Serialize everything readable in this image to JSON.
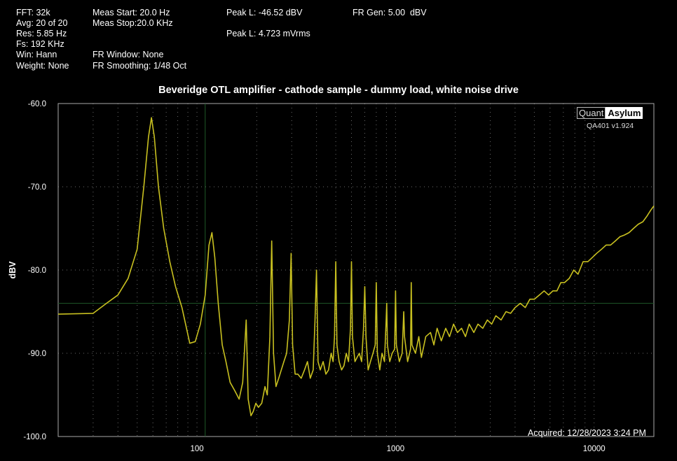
{
  "info": {
    "fft": "FFT: 32k",
    "avg": "Avg: 20 of 20",
    "res": "Res: 5.85 Hz",
    "fs": "Fs: 192 KHz",
    "win": "Win: Hann",
    "weight": "Weight: None",
    "meas_start": "Meas Start: 20.0 Hz",
    "meas_stop": "Meas Stop:20.0 KHz",
    "fr_window": "FR Window: None",
    "fr_smoothing": "FR Smoothing: 1/48 Oct",
    "peak_dbv": "Peak L: -46.52 dBV",
    "peak_vrms": "Peak L: 4.723 mVrms",
    "fr_gen": "FR Gen: 5.00  dBV"
  },
  "logo": {
    "quant": "Quant",
    "asylum": "Asylum",
    "version": "QA401 v1.924"
  },
  "acquired": "Acquired: 12/28/2023  3:24 PM",
  "chart_data": {
    "type": "line",
    "title": "Beveridge OTL amplifier - cathode sample - dummy load, white noise drive",
    "xlabel": "",
    "ylabel": "dBV",
    "x_scale": "log",
    "xlim": [
      20,
      20000
    ],
    "ylim": [
      -100,
      -60
    ],
    "x_ticks": [
      {
        "value": 100,
        "label": "100"
      },
      {
        "value": 1000,
        "label": "1000"
      },
      {
        "value": 10000,
        "label": "10000"
      }
    ],
    "y_ticks": [
      {
        "value": -60,
        "label": "-60.0"
      },
      {
        "value": -70,
        "label": "-70.0"
      },
      {
        "value": -80,
        "label": "-80.0"
      },
      {
        "value": -90,
        "label": "-90.0"
      },
      {
        "value": -100,
        "label": "-100.0"
      }
    ],
    "grid": true,
    "cursor": {
      "x": 110,
      "y": -84
    },
    "color": "#c8c020",
    "series": [
      {
        "points": [
          [
            20,
            -85.3
          ],
          [
            30,
            -85.2
          ],
          [
            35,
            -84
          ],
          [
            40,
            -83
          ],
          [
            45,
            -81
          ],
          [
            50,
            -77.5
          ],
          [
            54,
            -70
          ],
          [
            57,
            -64
          ],
          [
            59,
            -61.7
          ],
          [
            61,
            -64
          ],
          [
            64,
            -70
          ],
          [
            68,
            -75
          ],
          [
            73,
            -79
          ],
          [
            78,
            -82
          ],
          [
            84,
            -84.5
          ],
          [
            92,
            -88.8
          ],
          [
            98,
            -88.6
          ],
          [
            104,
            -86.5
          ],
          [
            110,
            -83
          ],
          [
            115,
            -77
          ],
          [
            119,
            -75.5
          ],
          [
            123,
            -78.5
          ],
          [
            128,
            -84
          ],
          [
            134,
            -89
          ],
          [
            140,
            -91
          ],
          [
            147,
            -93.5
          ],
          [
            155,
            -94.5
          ],
          [
            163,
            -95.5
          ],
          [
            170,
            -93.5
          ],
          [
            177,
            -86
          ],
          [
            181,
            -95.5
          ],
          [
            187,
            -97.5
          ],
          [
            192,
            -97
          ],
          [
            198,
            -96
          ],
          [
            204,
            -96.5
          ],
          [
            212,
            -96
          ],
          [
            220,
            -94
          ],
          [
            226,
            -95
          ],
          [
            233,
            -88
          ],
          [
            238,
            -76.5
          ],
          [
            243,
            -90
          ],
          [
            250,
            -94
          ],
          [
            258,
            -93
          ],
          [
            266,
            -92
          ],
          [
            274,
            -91
          ],
          [
            283,
            -90
          ],
          [
            292,
            -86
          ],
          [
            298,
            -78
          ],
          [
            303,
            -89
          ],
          [
            312,
            -92.5
          ],
          [
            322,
            -92.5
          ],
          [
            335,
            -93
          ],
          [
            348,
            -92
          ],
          [
            360,
            -91
          ],
          [
            372,
            -93
          ],
          [
            385,
            -92
          ],
          [
            393,
            -86
          ],
          [
            400,
            -80
          ],
          [
            407,
            -91
          ],
          [
            418,
            -92
          ],
          [
            432,
            -91
          ],
          [
            446,
            -92.5
          ],
          [
            460,
            -92
          ],
          [
            474,
            -90
          ],
          [
            485,
            -91
          ],
          [
            493,
            -88
          ],
          [
            500,
            -79
          ],
          [
            507,
            -89
          ],
          [
            520,
            -91
          ],
          [
            535,
            -92
          ],
          [
            550,
            -91.5
          ],
          [
            565,
            -90
          ],
          [
            580,
            -91
          ],
          [
            593,
            -87
          ],
          [
            600,
            -79
          ],
          [
            607,
            -88
          ],
          [
            625,
            -91
          ],
          [
            640,
            -90.5
          ],
          [
            657,
            -90
          ],
          [
            675,
            -91
          ],
          [
            690,
            -87
          ],
          [
            700,
            -82
          ],
          [
            710,
            -88
          ],
          [
            728,
            -92
          ],
          [
            748,
            -91
          ],
          [
            770,
            -90
          ],
          [
            790,
            -89
          ],
          [
            800,
            -81.5
          ],
          [
            810,
            -90
          ],
          [
            833,
            -92
          ],
          [
            855,
            -90
          ],
          [
            880,
            -91
          ],
          [
            897,
            -86
          ],
          [
            903,
            -84
          ],
          [
            910,
            -89
          ],
          [
            935,
            -91
          ],
          [
            962,
            -90
          ],
          [
            990,
            -89.5
          ],
          [
            1000,
            -82.5
          ],
          [
            1010,
            -89
          ],
          [
            1045,
            -91
          ],
          [
            1080,
            -90
          ],
          [
            1100,
            -85
          ],
          [
            1110,
            -88
          ],
          [
            1150,
            -91
          ],
          [
            1190,
            -89.5
          ],
          [
            1200,
            -81.5
          ],
          [
            1210,
            -89
          ],
          [
            1260,
            -90
          ],
          [
            1310,
            -88
          ],
          [
            1350,
            -90.5
          ],
          [
            1420,
            -88
          ],
          [
            1500,
            -87.5
          ],
          [
            1560,
            -89
          ],
          [
            1620,
            -87
          ],
          [
            1700,
            -88.5
          ],
          [
            1790,
            -87
          ],
          [
            1870,
            -88
          ],
          [
            1960,
            -86.5
          ],
          [
            2050,
            -87.5
          ],
          [
            2150,
            -87
          ],
          [
            2250,
            -88
          ],
          [
            2350,
            -86.5
          ],
          [
            2480,
            -87.5
          ],
          [
            2600,
            -86.5
          ],
          [
            2750,
            -87
          ],
          [
            2900,
            -86
          ],
          [
            3050,
            -86.5
          ],
          [
            3200,
            -85.5
          ],
          [
            3400,
            -86
          ],
          [
            3600,
            -85
          ],
          [
            3800,
            -85.2
          ],
          [
            4000,
            -84.5
          ],
          [
            4250,
            -84
          ],
          [
            4500,
            -84.5
          ],
          [
            4750,
            -83.5
          ],
          [
            5000,
            -83.5
          ],
          [
            5300,
            -83
          ],
          [
            5600,
            -82.5
          ],
          [
            5900,
            -83
          ],
          [
            6200,
            -82.5
          ],
          [
            6500,
            -82.5
          ],
          [
            6800,
            -81.5
          ],
          [
            7100,
            -81.5
          ],
          [
            7500,
            -81
          ],
          [
            7900,
            -80
          ],
          [
            8300,
            -80.5
          ],
          [
            8800,
            -79
          ],
          [
            9300,
            -79
          ],
          [
            9800,
            -78.5
          ],
          [
            10300,
            -78
          ],
          [
            10900,
            -77.5
          ],
          [
            11500,
            -77
          ],
          [
            12100,
            -77
          ],
          [
            12800,
            -76.5
          ],
          [
            13500,
            -76
          ],
          [
            14200,
            -75.8
          ],
          [
            15000,
            -75.5
          ],
          [
            15800,
            -75
          ],
          [
            16700,
            -74.5
          ],
          [
            17600,
            -74.2
          ],
          [
            18500,
            -73.5
          ],
          [
            19300,
            -72.8
          ],
          [
            20000,
            -72.3
          ]
        ]
      }
    ]
  }
}
